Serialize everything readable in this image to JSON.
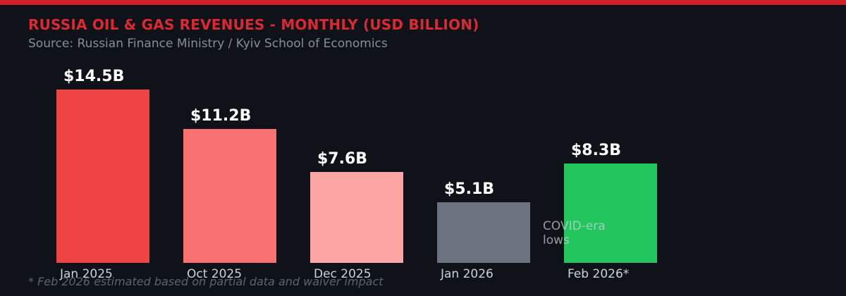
{
  "header": {
    "title": "RUSSIA OIL & GAS REVENUES - MONTHLY (USD BILLION)",
    "subtitle": "Source: Russian Finance Ministry / Kyiv School of Economics"
  },
  "chart_data": {
    "type": "bar",
    "title": "RUSSIA OIL & GAS REVENUES - MONTHLY (USD BILLION)",
    "categories": [
      "Jan 2025",
      "Oct 2025",
      "Dec 2025",
      "Jan 2026",
      "Feb 2026*"
    ],
    "values": [
      14.5,
      11.2,
      7.6,
      5.1,
      8.3
    ],
    "value_labels": [
      "$14.5B",
      "$11.2B",
      "$7.6B",
      "$5.1B",
      "$8.3B"
    ],
    "bar_colors": [
      "#ef4444",
      "#f87171",
      "#fca5a5",
      "#6b7280",
      "#22c55e"
    ],
    "unit": "USD billion per month",
    "ylim": [
      0,
      15
    ],
    "grid": false,
    "legend": false,
    "annotation": "COVID-era lows",
    "annotation_target": "Feb 2026*"
  },
  "footnote": "* Feb 2026 estimated based on partial data and waiver impact",
  "colors": {
    "background": "#10121a",
    "accent_strip": "#cf2127",
    "title_red": "#dc2830",
    "subtitle_gray": "#878d98",
    "category_gray": "#ccd1d9",
    "value_white": "#ffffff",
    "footnote_gray": "#5c636f"
  }
}
